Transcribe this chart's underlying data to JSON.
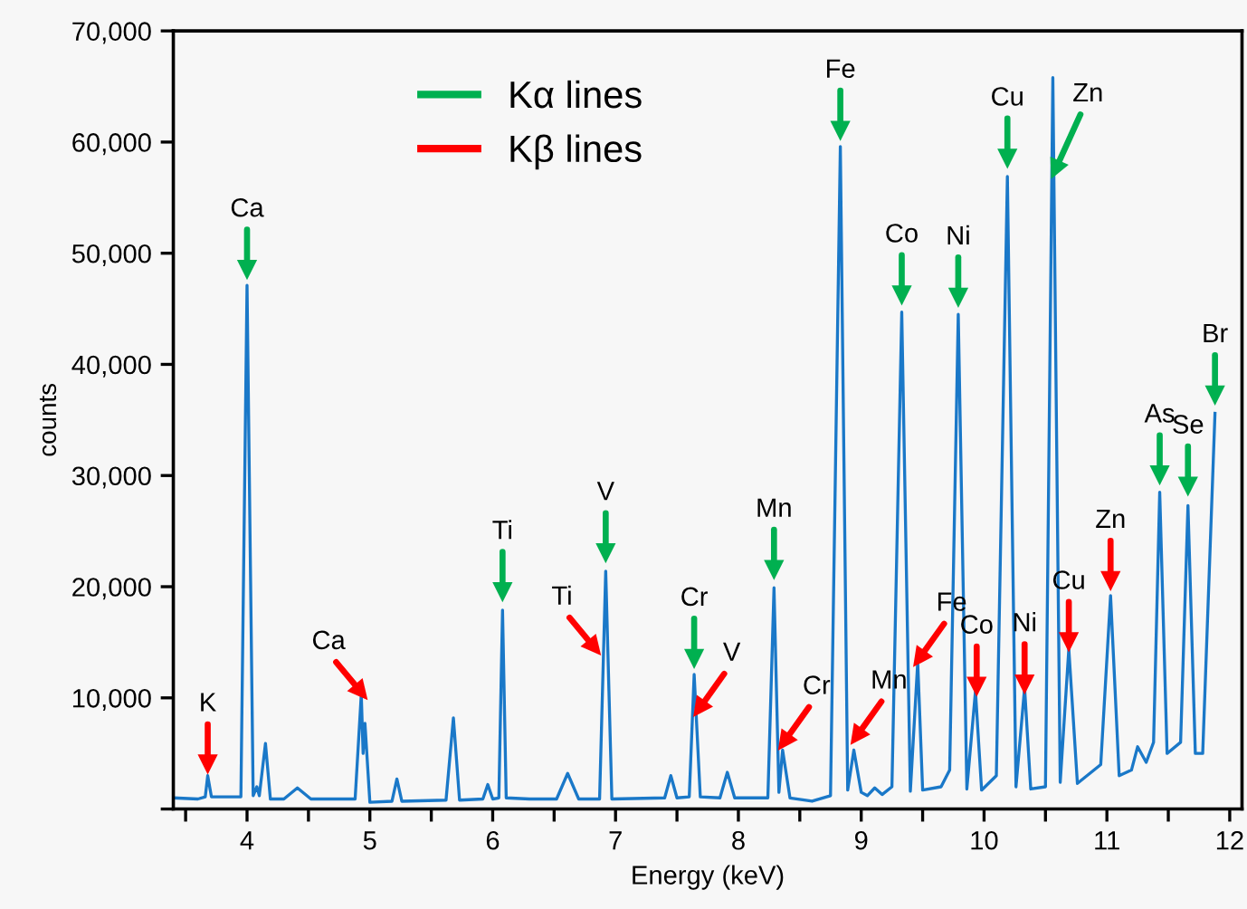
{
  "chart_data": {
    "type": "line",
    "xlabel": "Energy (keV)",
    "ylabel": "counts",
    "xlim": [
      3.4,
      12.1
    ],
    "ylim": [
      0,
      70000
    ],
    "xticks": [
      {
        "value": 3.5,
        "label": null
      },
      4,
      {
        "value": 4.5,
        "label": null
      },
      5,
      {
        "value": 5.5,
        "label": null
      },
      6,
      {
        "value": 6.5,
        "label": null
      },
      7,
      {
        "value": 7.5,
        "label": null
      },
      8,
      {
        "value": 8.5,
        "label": null
      },
      9,
      {
        "value": 9.5,
        "label": null
      },
      10,
      {
        "value": 10.5,
        "label": null
      },
      11,
      {
        "value": 11.5,
        "label": null
      },
      12
    ],
    "yticks": [
      {
        "value": 0,
        "label": null
      },
      {
        "value": 10000,
        "label": "10,000"
      },
      {
        "value": 20000,
        "label": "20,000"
      },
      {
        "value": 30000,
        "label": "30,000"
      },
      {
        "value": 40000,
        "label": "40,000"
      },
      {
        "value": 50000,
        "label": "50,000"
      },
      {
        "value": 60000,
        "label": "60,000"
      },
      {
        "value": 70000,
        "label": "70,000"
      }
    ],
    "grid": false,
    "legend": "top left",
    "series": [
      {
        "color": "#1a78c8",
        "x": [
          3.4,
          3.6,
          3.66,
          3.68,
          3.71,
          3.95,
          4.0,
          4.05,
          4.08,
          4.1,
          4.15,
          4.19,
          4.3,
          4.41,
          4.52,
          4.88,
          4.93,
          4.945,
          4.96,
          5.0,
          5.18,
          5.22,
          5.26,
          5.62,
          5.68,
          5.73,
          5.92,
          5.96,
          6.0,
          6.05,
          6.08,
          6.11,
          6.3,
          6.52,
          6.61,
          6.7,
          6.87,
          6.92,
          6.97,
          7.4,
          7.45,
          7.5,
          7.6,
          7.64,
          7.69,
          7.85,
          7.91,
          7.97,
          8.24,
          8.29,
          8.33,
          8.36,
          8.42,
          8.6,
          8.75,
          8.83,
          8.89,
          8.94,
          9.0,
          9.05,
          9.11,
          9.17,
          9.25,
          9.33,
          9.4,
          9.46,
          9.5,
          9.65,
          9.72,
          9.79,
          9.86,
          9.93,
          9.98,
          10.1,
          10.19,
          10.26,
          10.33,
          10.38,
          10.5,
          10.56,
          10.62,
          10.69,
          10.76,
          10.95,
          11.03,
          11.1,
          11.2,
          11.25,
          11.32,
          11.38,
          11.43,
          11.49,
          11.6,
          11.66,
          11.72,
          11.78,
          11.88
        ],
        "values": [
          1000,
          900,
          1100,
          3000,
          1100,
          1100,
          47100,
          1200,
          2000,
          1200,
          5900,
          900,
          900,
          1900,
          900,
          900,
          10300,
          5000,
          7700,
          600,
          700,
          2700,
          700,
          800,
          8200,
          800,
          900,
          2200,
          900,
          1000,
          17900,
          1000,
          900,
          900,
          3200,
          900,
          900,
          21400,
          900,
          1000,
          3000,
          1000,
          1100,
          12100,
          1100,
          1000,
          3300,
          1000,
          1000,
          19900,
          1500,
          5300,
          1000,
          700,
          1200,
          59600,
          1700,
          5300,
          1500,
          1200,
          1900,
          1300,
          2000,
          44700,
          1600,
          13200,
          1700,
          2000,
          3500,
          44500,
          1800,
          10600,
          1700,
          3000,
          56900,
          2000,
          10900,
          1800,
          2000,
          65800,
          2400,
          14400,
          2300,
          4000,
          19200,
          3000,
          3500,
          5600,
          4200,
          6000,
          28500,
          5000,
          6000,
          27300,
          5000,
          5000,
          35600
        ]
      },
      {
        "type": "scatter",
        "name": "Kα lines",
        "color": "#00b050",
        "marker": "triangle",
        "x": [
          4.0,
          6.08,
          6.92,
          7.64,
          8.29,
          8.83,
          9.33,
          9.79,
          10.19,
          10.58,
          11.43,
          11.66,
          11.88
        ],
        "values": [
          48500,
          19500,
          23000,
          13500,
          21500,
          61000,
          46200,
          46000,
          58500,
          57500,
          30000,
          29000,
          37200
        ]
      },
      {
        "type": "scatter",
        "name": "Kβ lines",
        "color": "#ff0000",
        "marker": "triangle",
        "x": [
          3.68,
          4.93,
          6.83,
          7.68,
          8.37,
          8.96,
          9.47,
          9.94,
          10.33,
          10.69,
          11.03
        ],
        "values": [
          4000,
          10500,
          14500,
          9000,
          6000,
          6500,
          13500,
          11000,
          11200,
          15000,
          20500
        ]
      }
    ],
    "annotations": [
      {
        "text": "Ca",
        "x": 4.0,
        "y": 48500
      },
      {
        "text": "Ti",
        "x": 6.08,
        "y": 19500
      },
      {
        "text": "V",
        "x": 6.92,
        "y": 23000
      },
      {
        "text": "Cr",
        "x": 7.64,
        "y": 13500
      },
      {
        "text": "Mn",
        "x": 8.29,
        "y": 21500
      },
      {
        "text": "Fe",
        "x": 8.83,
        "y": 61000
      },
      {
        "text": "Co",
        "x": 9.33,
        "y": 46200
      },
      {
        "text": "Ni",
        "x": 9.79,
        "y": 46000
      },
      {
        "text": "Cu",
        "x": 10.19,
        "y": 58500
      },
      {
        "text": "Zn",
        "x": 10.58,
        "y": 57500
      },
      {
        "text": "As",
        "x": 11.43,
        "y": 30000
      },
      {
        "text": "Se",
        "x": 11.66,
        "y": 29000
      },
      {
        "text": "Br",
        "x": 11.88,
        "y": 37200
      },
      {
        "text": "K",
        "x": 3.68,
        "y": 4000
      },
      {
        "text": "Ca",
        "x": 4.93,
        "y": 10500
      },
      {
        "text": "Ti",
        "x": 6.83,
        "y": 14500
      },
      {
        "text": "V",
        "x": 7.68,
        "y": 9000
      },
      {
        "text": "Cr",
        "x": 8.37,
        "y": 6000
      },
      {
        "text": "Mn",
        "x": 8.96,
        "y": 6500
      },
      {
        "text": "Fe",
        "x": 9.47,
        "y": 13500
      },
      {
        "text": "Co",
        "x": 9.94,
        "y": 11000
      },
      {
        "text": "Ni",
        "x": 10.33,
        "y": 11200
      },
      {
        "text": "Cu",
        "x": 10.69,
        "y": 15000
      },
      {
        "text": "Zn",
        "x": 11.03,
        "y": 20500
      }
    ]
  }
}
